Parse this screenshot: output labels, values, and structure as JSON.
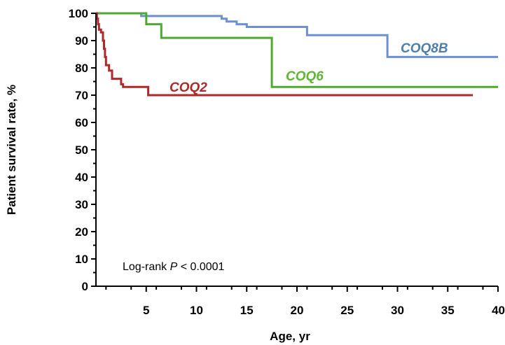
{
  "chart_data": {
    "type": "line",
    "step": true,
    "xlabel": "Age, yr",
    "ylabel": "Patient survival rate, %",
    "xlim": [
      0,
      40
    ],
    "ylim": [
      0,
      100
    ],
    "x_ticks": [
      5,
      10,
      15,
      20,
      25,
      30,
      35,
      40
    ],
    "y_ticks": [
      0,
      10,
      20,
      30,
      40,
      50,
      60,
      70,
      80,
      90,
      100
    ],
    "grid": false,
    "annotation": {
      "prefix": "Log-rank ",
      "italic": "P",
      "suffix": " < 0.0001"
    },
    "series": [
      {
        "name": "COQ8B",
        "color": "#6b8fd8",
        "label_color": "#4a7fb0",
        "points": [
          [
            0,
            100
          ],
          [
            4.5,
            100
          ],
          [
            4.5,
            99
          ],
          [
            12.5,
            99
          ],
          [
            12.5,
            98
          ],
          [
            13,
            98
          ],
          [
            13,
            97
          ],
          [
            14,
            97
          ],
          [
            14,
            96
          ],
          [
            15,
            96
          ],
          [
            15,
            95
          ],
          [
            21,
            95
          ],
          [
            21,
            92
          ],
          [
            29,
            92
          ],
          [
            29,
            84
          ],
          [
            40,
            84
          ]
        ]
      },
      {
        "name": "COQ6",
        "color": "#4caa2c",
        "label_color": "#5cb82e",
        "points": [
          [
            0,
            100
          ],
          [
            5,
            100
          ],
          [
            5,
            96
          ],
          [
            6.5,
            96
          ],
          [
            6.5,
            91
          ],
          [
            17.5,
            91
          ],
          [
            17.5,
            73
          ],
          [
            40,
            73
          ]
        ]
      },
      {
        "name": "COQ2",
        "color": "#b02828",
        "label_color": "#b02828",
        "points": [
          [
            0,
            100
          ],
          [
            0.1,
            100
          ],
          [
            0.1,
            98
          ],
          [
            0.2,
            98
          ],
          [
            0.2,
            96
          ],
          [
            0.3,
            96
          ],
          [
            0.3,
            94
          ],
          [
            0.5,
            94
          ],
          [
            0.5,
            93
          ],
          [
            0.7,
            93
          ],
          [
            0.7,
            90
          ],
          [
            0.8,
            90
          ],
          [
            0.8,
            87
          ],
          [
            0.9,
            87
          ],
          [
            0.9,
            84
          ],
          [
            1,
            84
          ],
          [
            1,
            81
          ],
          [
            1.3,
            81
          ],
          [
            1.3,
            79
          ],
          [
            1.6,
            79
          ],
          [
            1.6,
            76
          ],
          [
            2.5,
            76
          ],
          [
            2.5,
            74
          ],
          [
            2.7,
            74
          ],
          [
            2.7,
            73
          ],
          [
            5.2,
            73
          ],
          [
            5.2,
            70
          ],
          [
            37.5,
            70
          ]
        ]
      }
    ]
  }
}
